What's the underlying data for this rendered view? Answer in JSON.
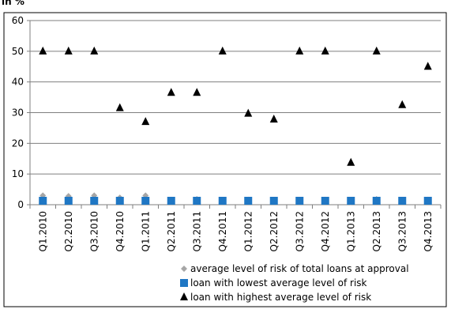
{
  "unit_label": "in %",
  "chart_data": {
    "type": "scatter",
    "title": "",
    "xlabel": "",
    "ylabel": "",
    "ylim": [
      0,
      60
    ],
    "yticks": [
      0,
      10,
      20,
      30,
      40,
      50,
      60
    ],
    "grid": "horizontal",
    "legend_position": "bottom",
    "categories": [
      "Q1.2010",
      "Q2.2010",
      "Q3.2010",
      "Q4.2010",
      "Q1.2011",
      "Q2.2011",
      "Q3.2011",
      "Q4.2011",
      "Q1.2012",
      "Q2.2012",
      "Q3.2012",
      "Q4.2012",
      "Q1.2013",
      "Q2.2013",
      "Q3.2013",
      "Q4.2013"
    ],
    "series": [
      {
        "name": "average level of risk of total loans at approval",
        "marker": "diamond",
        "color": "#a6a6a6",
        "values": [
          3.0,
          2.8,
          3.0,
          2.3,
          3.0,
          1.6,
          1.8,
          1.2,
          1.6,
          1.3,
          1.5,
          1.6,
          0.8,
          1.8,
          1.2,
          1.6
        ]
      },
      {
        "name": "loan with lowest average level of risk",
        "marker": "square",
        "color": "#1f77c4",
        "values": [
          0.2,
          0.2,
          0.2,
          0.2,
          0.2,
          0.2,
          0.2,
          0.2,
          0.2,
          0.2,
          0.2,
          0.2,
          0.2,
          0.2,
          0.2,
          0.2
        ]
      },
      {
        "name": "loan with highest average level of risk",
        "marker": "triangle",
        "color": "#000000",
        "values": [
          50,
          50,
          50,
          31.5,
          27,
          36.5,
          36.5,
          50,
          29.7,
          27.8,
          50,
          50,
          13.7,
          50,
          32.5,
          45
        ]
      }
    ]
  }
}
